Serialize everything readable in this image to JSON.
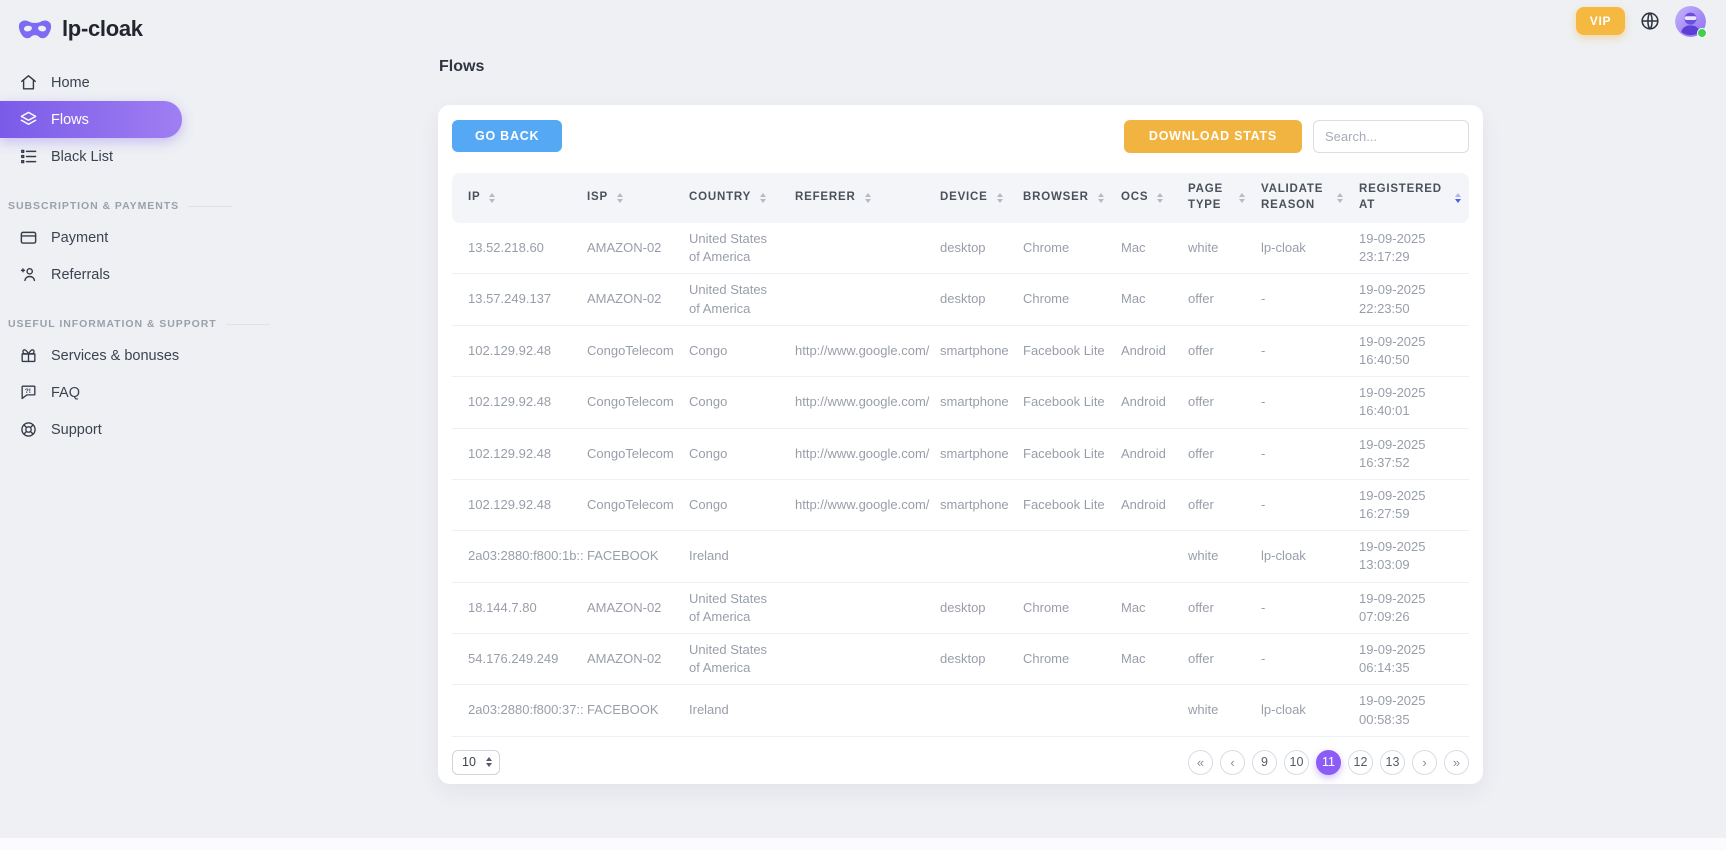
{
  "app": {
    "name": "lp-cloak"
  },
  "topbar": {
    "vip_label": "VIP"
  },
  "sidebar": {
    "sections": [
      {
        "label": "",
        "items": [
          {
            "label": "Home",
            "icon": "home-icon",
            "active": false
          },
          {
            "label": "Flows",
            "icon": "flows-icon",
            "active": true
          },
          {
            "label": "Black List",
            "icon": "blacklist-icon",
            "active": false
          }
        ]
      },
      {
        "label": "SUBSCRIPTION & PAYMENTS",
        "items": [
          {
            "label": "Payment",
            "icon": "payment-icon",
            "active": false
          },
          {
            "label": "Referrals",
            "icon": "referrals-icon",
            "active": false
          }
        ]
      },
      {
        "label": "USEFUL INFORMATION & SUPPORT",
        "items": [
          {
            "label": "Services & bonuses",
            "icon": "gift-icon",
            "active": false
          },
          {
            "label": "FAQ",
            "icon": "faq-icon",
            "active": false
          },
          {
            "label": "Support",
            "icon": "support-icon",
            "active": false
          }
        ]
      }
    ]
  },
  "page": {
    "title": "Flows"
  },
  "toolbar": {
    "go_back_label": "GO BACK",
    "download_stats_label": "DOWNLOAD STATS",
    "search_placeholder": "Search...",
    "search_value": ""
  },
  "table": {
    "columns": [
      "IP",
      "ISP",
      "COUNTRY",
      "REFERER",
      "DEVICE",
      "BROWSER",
      "OCS",
      "PAGE TYPE",
      "VALIDATE REASON",
      "REGISTERED AT"
    ],
    "sort": {
      "column": "REGISTERED AT",
      "column_index": 9,
      "direction": "desc"
    },
    "rows": [
      [
        "13.52.218.60",
        "AMAZON-02",
        "United States of America",
        "",
        "desktop",
        "Chrome",
        "Mac",
        "white",
        "lp-cloak",
        "19-09-2025 23:17:29"
      ],
      [
        "13.57.249.137",
        "AMAZON-02",
        "United States of America",
        "",
        "desktop",
        "Chrome",
        "Mac",
        "offer",
        "-",
        "19-09-2025 22:23:50"
      ],
      [
        "102.129.92.48",
        "CongoTelecom",
        "Congo",
        "http://www.google.com/",
        "smartphone",
        "Facebook Lite",
        "Android",
        "offer",
        "-",
        "19-09-2025 16:40:50"
      ],
      [
        "102.129.92.48",
        "CongoTelecom",
        "Congo",
        "http://www.google.com/",
        "smartphone",
        "Facebook Lite",
        "Android",
        "offer",
        "-",
        "19-09-2025 16:40:01"
      ],
      [
        "102.129.92.48",
        "CongoTelecom",
        "Congo",
        "http://www.google.com/",
        "smartphone",
        "Facebook Lite",
        "Android",
        "offer",
        "-",
        "19-09-2025 16:37:52"
      ],
      [
        "102.129.92.48",
        "CongoTelecom",
        "Congo",
        "http://www.google.com/",
        "smartphone",
        "Facebook Lite",
        "Android",
        "offer",
        "-",
        "19-09-2025 16:27:59"
      ],
      [
        "2a03:2880:f800:1b::",
        "FACEBOOK",
        "Ireland",
        "",
        "",
        "",
        "",
        "white",
        "lp-cloak",
        "19-09-2025 13:03:09"
      ],
      [
        "18.144.7.80",
        "AMAZON-02",
        "United States of America",
        "",
        "desktop",
        "Chrome",
        "Mac",
        "offer",
        "-",
        "19-09-2025 07:09:26"
      ],
      [
        "54.176.249.249",
        "AMAZON-02",
        "United States of America",
        "",
        "desktop",
        "Chrome",
        "Mac",
        "offer",
        "-",
        "19-09-2025 06:14:35"
      ],
      [
        "2a03:2880:f800:37::",
        "FACEBOOK",
        "Ireland",
        "",
        "",
        "",
        "",
        "white",
        "lp-cloak",
        "19-09-2025 00:58:35"
      ]
    ]
  },
  "footer": {
    "page_size": "10",
    "active_page": "11",
    "pagination": [
      {
        "name": "first",
        "label": "«",
        "glyph": true
      },
      {
        "name": "prev",
        "label": "‹",
        "glyph": true
      },
      {
        "name": "page-9",
        "label": "9"
      },
      {
        "name": "page-10",
        "label": "10"
      },
      {
        "name": "page-11",
        "label": "11",
        "active": true
      },
      {
        "name": "page-12",
        "label": "12"
      },
      {
        "name": "page-13",
        "label": "13"
      },
      {
        "name": "next",
        "label": "›",
        "glyph": true
      },
      {
        "name": "last",
        "label": "»",
        "glyph": true
      }
    ]
  },
  "colors": {
    "accent_gradient_start": "#7a5be8",
    "accent_gradient_end": "#a07ef2",
    "accent_purple": "#8b5cf6",
    "vip_orange": "#f5b840",
    "go_back_blue": "#55a8f4",
    "download_orange": "#f1b440",
    "sort_active_blue": "#4c5ef0",
    "status_green": "#43cf4e",
    "logo_purple": "#7d6bf3"
  }
}
